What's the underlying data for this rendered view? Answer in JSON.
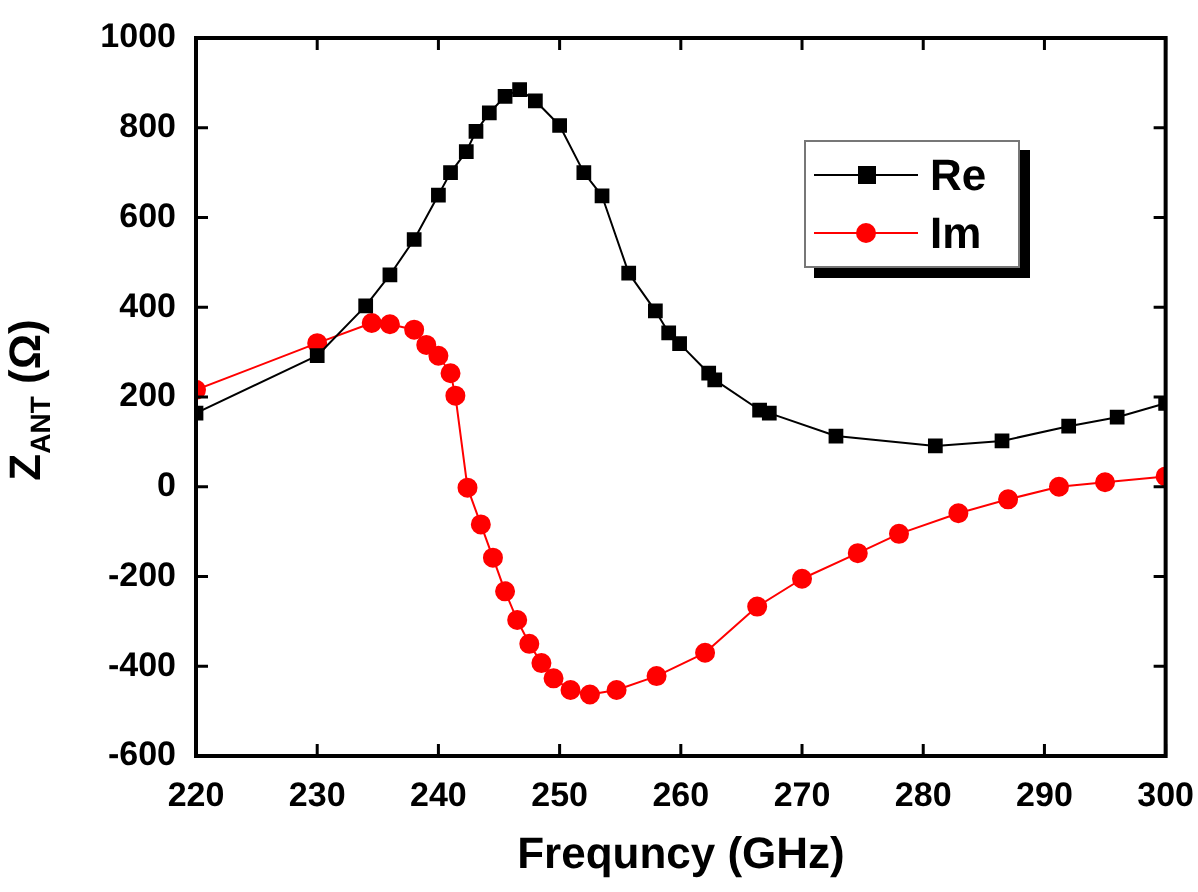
{
  "chart_data": {
    "type": "line",
    "xlabel": "Frequncy (GHz)",
    "ylabel": "Z$_{ANT}$ (Ω)",
    "xlim": [
      220,
      300
    ],
    "xticks": [
      220,
      230,
      240,
      250,
      260,
      270,
      280,
      290,
      300
    ],
    "ylim": [
      -600,
      1000
    ],
    "yticks": [
      -600,
      -400,
      -200,
      0,
      200,
      400,
      600,
      800,
      1000
    ],
    "grid": false,
    "legend": "top right",
    "series": [
      {
        "name": "Re",
        "color": "#000000",
        "marker": "square",
        "x": [
          220,
          230,
          234,
          236,
          238,
          240,
          241,
          242.3,
          243.1,
          244.2,
          245.5,
          246.7,
          248,
          250,
          252,
          253.5,
          255.7,
          257.9,
          259,
          259.9,
          262.3,
          262.8,
          266.5,
          267.3,
          272.8,
          281,
          286.5,
          292,
          296,
          300
        ],
        "values": [
          164,
          292,
          403,
          472,
          551,
          650,
          700,
          747,
          792,
          833,
          870,
          885,
          860,
          805,
          700,
          648,
          476,
          392,
          343,
          319,
          253,
          238,
          171,
          164,
          113,
          91,
          102,
          135,
          155,
          186
        ]
      },
      {
        "name": "Im",
        "color": "#ff0000",
        "marker": "circle",
        "x": [
          220,
          230,
          234.5,
          236,
          238,
          239,
          240,
          241,
          241.4,
          242.4,
          243.5,
          244.5,
          245.5,
          246.5,
          247.5,
          248.5,
          249.5,
          250.9,
          252.5,
          254.7,
          258,
          262,
          266.3,
          270,
          274.6,
          278,
          282.9,
          287,
          291.2,
          295,
          300
        ],
        "values": [
          216,
          320,
          365,
          362,
          350,
          316,
          292,
          253,
          203,
          -2,
          -84,
          -158,
          -233,
          -297,
          -350,
          -393,
          -427,
          -453,
          -463,
          -453,
          -422,
          -370,
          -267,
          -205,
          -148,
          -105,
          -59,
          -28,
          0,
          10,
          23
        ]
      }
    ]
  }
}
